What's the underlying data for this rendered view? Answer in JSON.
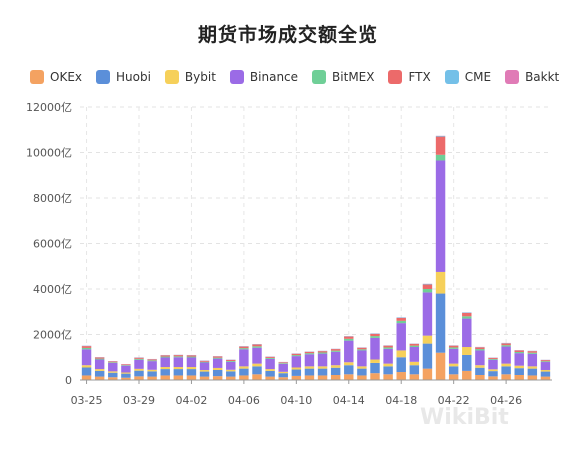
{
  "title": "期货市场成交额全览",
  "watermark": "WikiBit",
  "chart_data": {
    "type": "bar",
    "stacked": true,
    "title": "期货市场成交额全览",
    "ylim": [
      0,
      12000
    ],
    "y_ticks": [
      0,
      2000,
      4000,
      6000,
      8000,
      10000,
      12000
    ],
    "y_tick_labels": [
      "0",
      "2000亿",
      "4000亿",
      "6000亿",
      "8000亿",
      "10000亿",
      "12000亿"
    ],
    "x_tick_labels": [
      "03-25",
      "03-29",
      "04-02",
      "04-06",
      "04-10",
      "04-14",
      "04-18",
      "04-22",
      "04-26"
    ],
    "categories": [
      "03-25",
      "03-26",
      "03-27",
      "03-28",
      "03-29",
      "03-30",
      "03-31",
      "04-01",
      "04-02",
      "04-03",
      "04-04",
      "04-05",
      "04-06",
      "04-07",
      "04-08",
      "04-09",
      "04-10",
      "04-11",
      "04-12",
      "04-13",
      "04-14",
      "04-15",
      "04-16",
      "04-17",
      "04-18",
      "04-19",
      "04-20",
      "04-21",
      "04-22",
      "04-23",
      "04-24",
      "04-25",
      "04-26",
      "04-27",
      "04-28",
      "04-29"
    ],
    "legend_position": "top",
    "grid": true,
    "series": [
      {
        "name": "OKEx",
        "color": "#f4a261",
        "values": [
          200,
          150,
          120,
          100,
          160,
          150,
          200,
          200,
          200,
          150,
          170,
          150,
          200,
          250,
          150,
          120,
          180,
          200,
          200,
          220,
          250,
          200,
          300,
          250,
          350,
          250,
          500,
          1200,
          250,
          400,
          220,
          160,
          250,
          220,
          200,
          150
        ]
      },
      {
        "name": "Huobi",
        "color": "#5b8fd9",
        "values": [
          350,
          250,
          200,
          180,
          250,
          230,
          280,
          280,
          280,
          220,
          270,
          230,
          300,
          350,
          250,
          180,
          280,
          300,
          300,
          320,
          400,
          300,
          450,
          350,
          650,
          400,
          1100,
          2600,
          350,
          700,
          320,
          230,
          350,
          300,
          300,
          220
        ]
      },
      {
        "name": "Bybit",
        "color": "#f6d05a",
        "values": [
          100,
          80,
          60,
          50,
          80,
          70,
          90,
          90,
          90,
          70,
          90,
          70,
          100,
          120,
          80,
          60,
          90,
          100,
          100,
          110,
          130,
          100,
          150,
          120,
          300,
          150,
          350,
          950,
          120,
          350,
          110,
          80,
          120,
          110,
          100,
          70
        ]
      },
      {
        "name": "Binance",
        "color": "#9b6be6",
        "values": [
          700,
          420,
          370,
          300,
          400,
          380,
          420,
          430,
          420,
          330,
          410,
          350,
          750,
          700,
          450,
          350,
          500,
          530,
          560,
          590,
          950,
          700,
          950,
          650,
          1200,
          650,
          1900,
          4900,
          650,
          1250,
          650,
          420,
          750,
          550,
          550,
          350
        ]
      },
      {
        "name": "BitMEX",
        "color": "#6fcf97",
        "values": [
          60,
          40,
          30,
          25,
          40,
          35,
          40,
          40,
          40,
          30,
          40,
          35,
          50,
          60,
          40,
          30,
          45,
          50,
          50,
          50,
          80,
          50,
          80,
          60,
          100,
          60,
          150,
          250,
          60,
          100,
          60,
          35,
          60,
          50,
          50,
          35
        ]
      },
      {
        "name": "FTX",
        "color": "#ec6a6a",
        "values": [
          80,
          50,
          40,
          35,
          50,
          45,
          55,
          55,
          55,
          45,
          55,
          50,
          70,
          80,
          50,
          40,
          60,
          60,
          60,
          70,
          100,
          70,
          100,
          80,
          130,
          80,
          200,
          800,
          80,
          150,
          80,
          50,
          80,
          70,
          70,
          50
        ]
      },
      {
        "name": "CME",
        "color": "#74c0e8",
        "values": [
          15,
          10,
          10,
          5,
          10,
          10,
          10,
          10,
          10,
          10,
          10,
          10,
          15,
          15,
          10,
          10,
          10,
          10,
          10,
          10,
          15,
          10,
          15,
          10,
          20,
          10,
          25,
          30,
          10,
          20,
          10,
          10,
          15,
          10,
          10,
          10
        ]
      },
      {
        "name": "Bakkt",
        "color": "#e07bb6",
        "values": [
          5,
          5,
          5,
          5,
          5,
          5,
          5,
          5,
          5,
          5,
          5,
          5,
          5,
          5,
          5,
          5,
          5,
          5,
          5,
          5,
          5,
          5,
          5,
          5,
          5,
          5,
          5,
          5,
          5,
          5,
          5,
          5,
          5,
          5,
          5,
          5
        ]
      }
    ]
  }
}
